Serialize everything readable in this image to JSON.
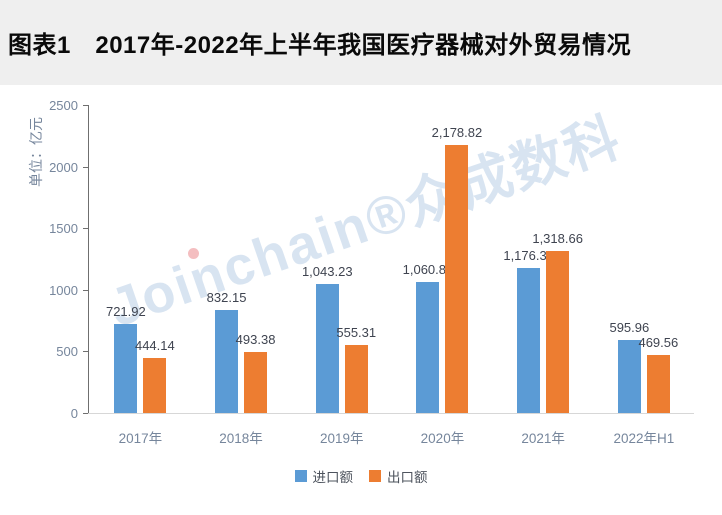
{
  "title_bar": {
    "label": "图表1　2017年-2022年上半年我国医疗器械对外贸易情况"
  },
  "watermark": {
    "text": "Joinchain®众成数科"
  },
  "chart_data": {
    "type": "bar",
    "title": "图表1 2017年-2022年上半年我国医疗器械对外贸易情况",
    "ylabel": "单位：亿元",
    "xlabel": "",
    "categories": [
      "2017年",
      "2018年",
      "2019年",
      "2020年",
      "2021年",
      "2022年H1"
    ],
    "series": [
      {
        "name": "进口额",
        "color": "#5B9BD5",
        "values": [
          721.92,
          832.15,
          1043.23,
          1060.87,
          1176.3,
          595.96
        ],
        "labels": [
          "721.92",
          "832.15",
          "1,043.23",
          "1,060.87",
          "1,176.30",
          "595.96"
        ]
      },
      {
        "name": "出口额",
        "color": "#ED7D31",
        "values": [
          444.14,
          493.38,
          555.31,
          2178.82,
          1318.66,
          469.56
        ],
        "labels": [
          "444.14",
          "493.38",
          "555.31",
          "2,178.82",
          "1,318.66",
          "469.56"
        ]
      }
    ],
    "ylim": [
      0,
      2500
    ],
    "yticks": [
      0,
      500,
      1000,
      1500,
      2000,
      2500
    ],
    "grid": false,
    "legend_position": "bottom"
  },
  "colors": {
    "import_blue": "#5B9BD5",
    "export_orange": "#ED7D31",
    "axis_label": "#76869C",
    "data_label": "#3f4450",
    "axis_line": "#6f6f6f",
    "baseline": "#d7d7d7",
    "title_bg": "#efefef",
    "watermark_blue": "rgba(125,165,208,0.30)"
  }
}
